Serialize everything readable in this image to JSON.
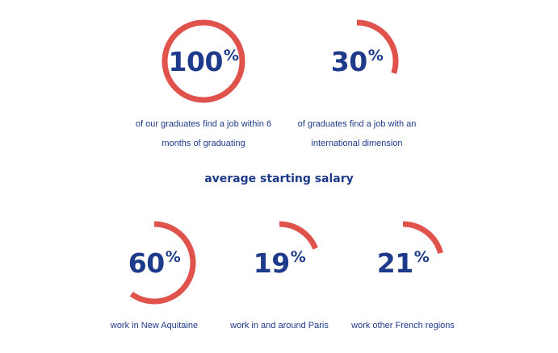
{
  "theme": {
    "navy": "#1e3a8a",
    "accent": "#e0524c"
  },
  "stats": [
    {
      "id": "employment-within-6-months",
      "value": "100",
      "unit": "%",
      "percent": 100,
      "caption_lines": [
        "of our graduates find a job within 6",
        "months of graduating"
      ]
    },
    {
      "id": "international-jobs",
      "value": "30",
      "unit": "%",
      "percent": 30,
      "caption_lines": [
        "of graduates find a job with an",
        "international dimension"
      ]
    },
    {
      "id": "new-aquitaine",
      "value": "60",
      "unit": "%",
      "percent": 60,
      "caption_lines": [
        "work in New Aquitaine"
      ]
    },
    {
      "id": "paris",
      "value": "19",
      "unit": "%",
      "percent": 19,
      "caption_lines": [
        "work in and around Paris"
      ]
    },
    {
      "id": "other-french-regions",
      "value": "21",
      "unit": "%",
      "percent": 21,
      "caption_lines": [
        "work other French regions"
      ]
    }
  ],
  "section_heading": "average starting salary"
}
